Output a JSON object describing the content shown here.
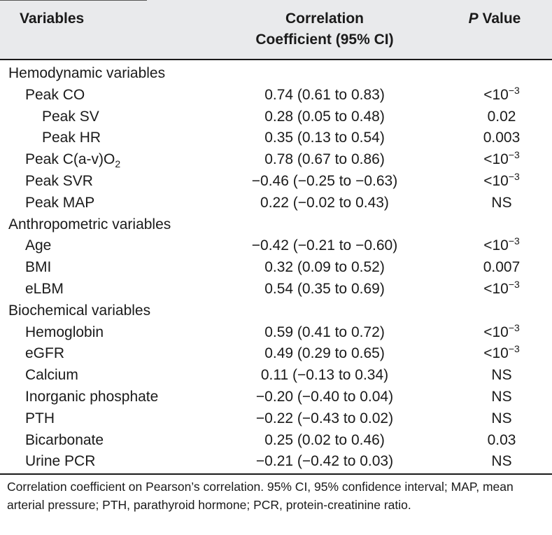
{
  "header": {
    "variables": "Variables",
    "corr_line1": "Correlation",
    "corr_line2": "Coefficient (95% CI)",
    "p_italic": "P",
    "p_rest": " Value"
  },
  "rows": [
    {
      "label": "Hemodynamic variables",
      "level": 0,
      "corr": "",
      "p": ""
    },
    {
      "label": "Peak CO",
      "level": 1,
      "corr": "0.74 (0.61 to 0.83)",
      "p": "<10",
      "p_exp": "−3"
    },
    {
      "label": "Peak SV",
      "level": 2,
      "corr": "0.28 (0.05 to 0.48)",
      "p": "0.02"
    },
    {
      "label": "Peak HR",
      "level": 2,
      "corr": "0.35 (0.13 to 0.54)",
      "p": "0.003"
    },
    {
      "label": "Peak C(a-v)O",
      "label_sub": "2",
      "level": 1,
      "corr": "0.78 (0.67 to 0.86)",
      "p": "<10",
      "p_exp": "−3"
    },
    {
      "label": "Peak SVR",
      "level": 1,
      "corr": "−0.46 (−0.25 to −0.63)",
      "p": "<10",
      "p_exp": "−3"
    },
    {
      "label": "Peak MAP",
      "level": 1,
      "corr": "0.22 (−0.02 to 0.43)",
      "p": "NS"
    },
    {
      "label": "Anthropometric variables",
      "level": 0,
      "corr": "",
      "p": ""
    },
    {
      "label": "Age",
      "level": 1,
      "corr": "−0.42 (−0.21 to −0.60)",
      "p": "<10",
      "p_exp": "−3"
    },
    {
      "label": "BMI",
      "level": 1,
      "corr": "0.32 (0.09 to 0.52)",
      "p": "0.007"
    },
    {
      "label": "eLBM",
      "level": 1,
      "corr": "0.54 (0.35 to 0.69)",
      "p": "<10",
      "p_exp": "−3"
    },
    {
      "label": "Biochemical variables",
      "level": 0,
      "corr": "",
      "p": ""
    },
    {
      "label": "Hemoglobin",
      "level": 1,
      "corr": "0.59 (0.41 to 0.72)",
      "p": "<10",
      "p_exp": "−3"
    },
    {
      "label": "eGFR",
      "level": 1,
      "corr": "0.49 (0.29 to 0.65)",
      "p": "<10",
      "p_exp": "−3"
    },
    {
      "label": "Calcium",
      "level": 1,
      "corr": "0.11 (−0.13 to 0.34)",
      "p": "NS"
    },
    {
      "label": "Inorganic phosphate",
      "level": 1,
      "corr": "−0.20 (−0.40 to 0.04)",
      "p": "NS"
    },
    {
      "label": "PTH",
      "level": 1,
      "corr": "−0.22 (−0.43 to 0.02)",
      "p": "NS"
    },
    {
      "label": "Bicarbonate",
      "level": 1,
      "corr": "0.25 (0.02 to 0.46)",
      "p": "0.03"
    },
    {
      "label": "Urine PCR",
      "level": 1,
      "corr": "−0.21 (−0.42 to 0.03)",
      "p": "NS"
    }
  ],
  "footnote": "Correlation coefficient on Pearson’s correlation. 95% CI, 95% confidence interval; MAP, mean arterial pressure; PTH, parathyroid hormone; PCR, protein-creatinine ratio.",
  "colors": {
    "header_bg": "#e9eaec",
    "rule": "#1a1a1a",
    "text": "#1a1a1a"
  }
}
